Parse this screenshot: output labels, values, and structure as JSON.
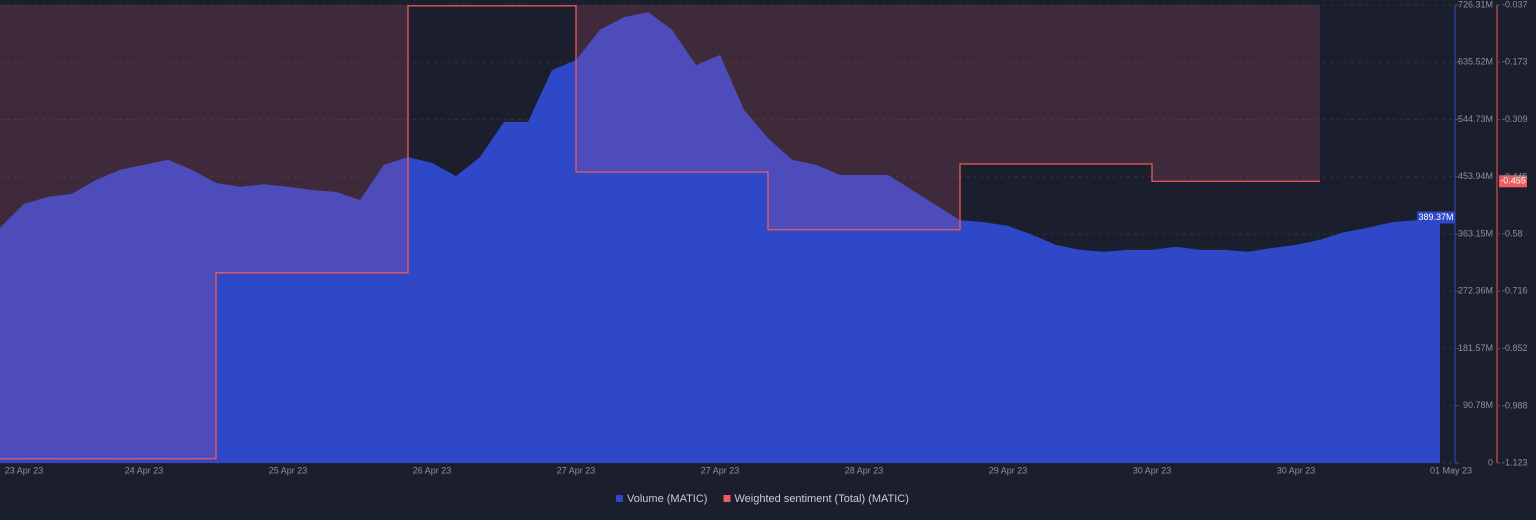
{
  "chart_data": {
    "type": "area",
    "categories": [
      null,
      "23 Apr 23",
      null,
      null,
      null,
      null,
      "24 Apr 23",
      null,
      null,
      null,
      null,
      null,
      "25 Apr 23",
      null,
      null,
      null,
      null,
      null,
      "26 Apr 23",
      null,
      null,
      null,
      null,
      null,
      "27 Apr 23",
      null,
      null,
      null,
      null,
      null,
      "27 Apr 23",
      null,
      null,
      null,
      null,
      null,
      "28 Apr 23",
      null,
      null,
      null,
      null,
      null,
      "29 Apr 23",
      null,
      null,
      null,
      null,
      null,
      "30 Apr 23",
      null,
      null,
      null,
      null,
      null,
      "30 Apr 23",
      null,
      null,
      null,
      null,
      null,
      "01 May 23"
    ],
    "series": [
      {
        "name": "Volume (MATIC)",
        "color": "#2f48c8",
        "values": [
          373,
          411,
          422,
          427,
          449,
          465,
          473,
          481,
          465,
          444,
          438,
          442,
          438,
          433,
          430,
          417,
          473,
          485,
          476,
          455,
          485,
          541,
          541,
          623,
          639,
          687,
          707,
          715,
          687,
          631,
          647,
          560,
          515,
          481,
          473,
          457,
          457,
          457,
          433,
          409,
          385,
          382,
          376,
          362,
          346,
          338,
          335,
          338,
          338,
          343,
          338,
          338,
          335,
          341,
          346,
          354,
          366,
          373,
          382,
          385,
          389.37
        ],
        "value_labels": [
          null,
          null,
          null,
          null,
          null,
          null,
          null,
          null,
          null,
          null,
          null,
          null,
          null,
          null,
          null,
          null,
          null,
          null,
          null,
          null,
          null,
          null,
          null,
          null,
          null,
          null,
          null,
          null,
          null,
          null,
          null,
          null,
          null,
          null,
          null,
          null,
          null,
          null,
          null,
          null,
          null,
          null,
          null,
          null,
          null,
          null,
          null,
          null,
          null,
          null,
          null,
          null,
          null,
          null,
          null,
          null,
          null,
          null,
          null,
          null,
          "389.37M"
        ]
      },
      {
        "name": "Weighted sentiment (Total) (MATIC)",
        "color": "#f05a5a",
        "axis": "y2",
        "values": [
          -1.113,
          -1.113,
          -1.113,
          -1.113,
          -1.113,
          -1.113,
          -1.113,
          -1.113,
          -1.113,
          -0.672,
          -0.672,
          -0.672,
          -0.672,
          -0.672,
          -0.672,
          -0.672,
          -0.672,
          -0.039,
          -0.039,
          -0.039,
          -0.039,
          -0.039,
          -0.039,
          -0.039,
          -0.433,
          -0.433,
          -0.433,
          -0.433,
          -0.433,
          -0.433,
          -0.433,
          -0.433,
          -0.57,
          -0.57,
          -0.57,
          -0.57,
          -0.57,
          -0.57,
          -0.57,
          -0.57,
          -0.414,
          -0.414,
          -0.414,
          -0.414,
          -0.414,
          -0.414,
          -0.414,
          -0.414,
          -0.455,
          -0.455,
          -0.455,
          -0.455,
          -0.455,
          -0.455,
          -0.455,
          -0.455,
          null,
          null,
          null,
          null,
          null
        ]
      }
    ],
    "ylim": [
      0,
      726.31
    ],
    "yticks": [
      0,
      {
        "value": 90.78,
        "label": "90.78M"
      },
      {
        "value": 181.57,
        "label": "181.57M"
      },
      {
        "value": 272.36,
        "label": "272.36M"
      },
      {
        "value": 363.15,
        "label": "363.15M"
      },
      {
        "value": 453.94,
        "label": "453.94M"
      },
      {
        "value": 544.73,
        "label": "544.73M"
      },
      {
        "value": 635.52,
        "label": "635.52M"
      },
      {
        "value": 726.31,
        "label": "726.31M"
      }
    ],
    "y2lim": [
      -1.123,
      -0.037
    ],
    "y2ticks": [
      -1.123,
      -0.988,
      -0.852,
      -0.716,
      -0.58,
      -0.445,
      -0.309,
      -0.173,
      -0.037
    ],
    "grid": true
  }
}
